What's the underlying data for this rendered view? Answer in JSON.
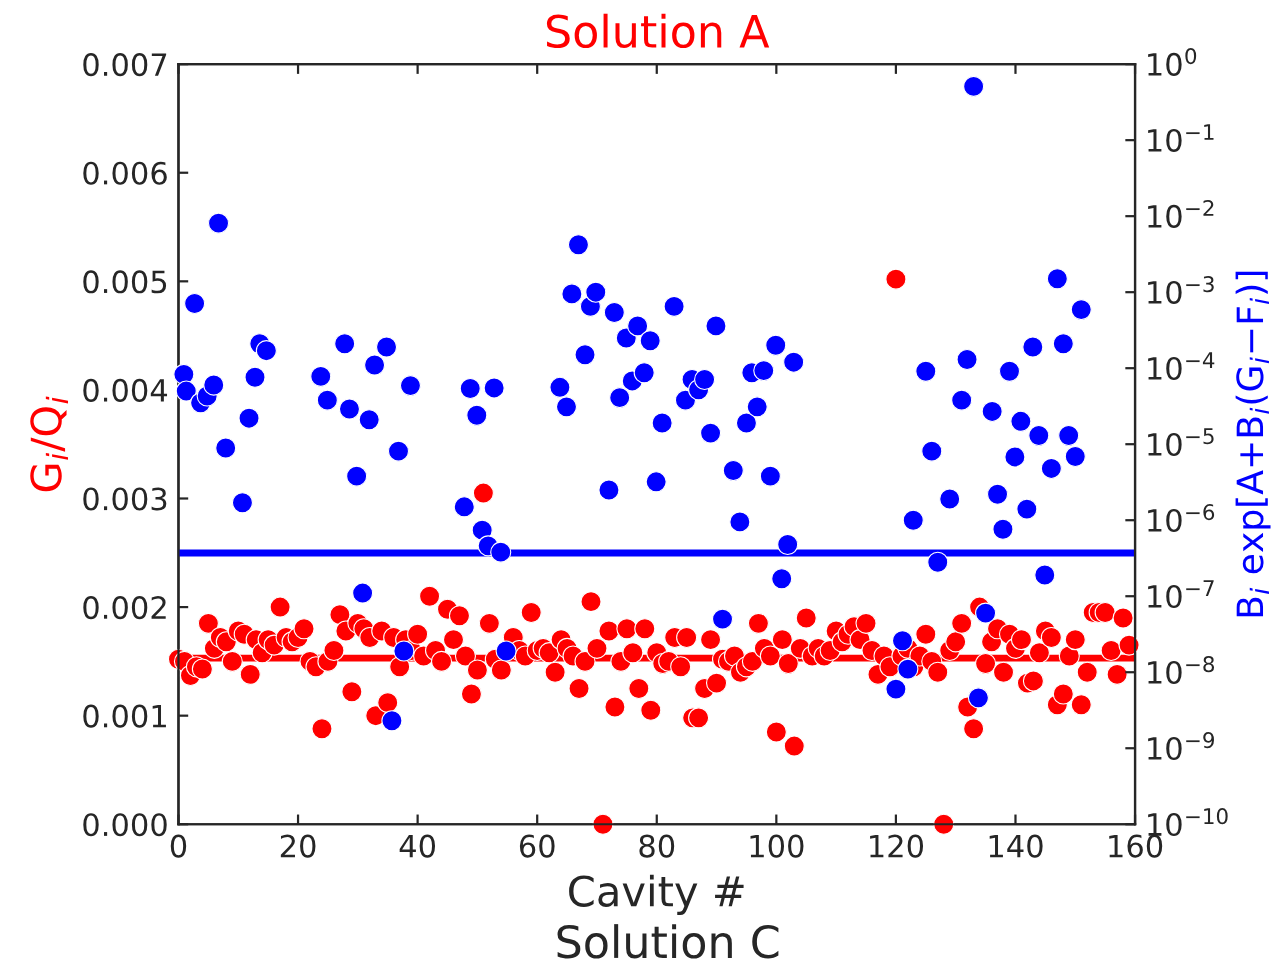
{
  "chart_data": {
    "type": "scatter",
    "title": "Solution A",
    "xlabel": "Cavity #",
    "ylabel": "G$_{i}$/Q$_{i}$",
    "y2label": "B$_{i}$ exp[A+B$_{i}$(G$_{i}$−F$_{i}$)]",
    "marker": "circle",
    "grid": false,
    "legend": false,
    "log": "y2",
    "xlim": [
      0,
      160
    ],
    "xticks": [
      0,
      20,
      40,
      60,
      80,
      100,
      120,
      140,
      160
    ],
    "ylim": [
      0,
      0.007
    ],
    "yticks": [
      {
        "value": 0,
        "label": "0.000"
      },
      {
        "value": 0.001,
        "label": "0.001"
      },
      {
        "value": 0.002,
        "label": "0.002"
      },
      {
        "value": 0.003,
        "label": "0.003"
      },
      {
        "value": 0.004,
        "label": "0.004"
      },
      {
        "value": 0.005,
        "label": "0.005"
      },
      {
        "value": 0.006,
        "label": "0.006"
      },
      {
        "value": 0.007,
        "label": "0.007"
      }
    ],
    "y2lim": [
      1e-10,
      1
    ],
    "y2ticks": [
      {
        "value": 1e-10,
        "label": "10$^{−10}$"
      },
      {
        "value": 1e-09,
        "label": "10$^{−9}$"
      },
      {
        "value": 1e-08,
        "label": "10$^{−8}$"
      },
      {
        "value": 1e-07,
        "label": "10$^{−7}$"
      },
      {
        "value": 1e-06,
        "label": "10$^{−6}$"
      },
      {
        "value": 1e-05,
        "label": "10$^{−5}$"
      },
      {
        "value": 0.0001,
        "label": "10$^{−4}$"
      },
      {
        "value": 0.001,
        "label": "10$^{−3}$"
      },
      {
        "value": 0.01,
        "label": "10$^{−2}$"
      },
      {
        "value": 0.1,
        "label": "10$^{−1}$"
      },
      {
        "value": 1,
        "label": "10$^{0}$"
      }
    ],
    "series": [
      {
        "color": "#ff0000",
        "x": [
          0,
          1,
          2,
          3,
          4,
          5,
          6,
          7,
          8,
          9,
          10,
          11,
          12,
          13,
          14,
          15,
          16,
          17,
          18,
          19,
          20,
          21,
          22,
          23,
          24,
          25,
          26,
          27,
          28,
          29,
          30,
          31,
          32,
          33,
          34,
          35,
          36,
          37,
          38,
          39,
          40,
          41,
          42,
          43,
          44,
          45,
          46,
          47,
          48,
          49,
          50,
          51,
          52,
          53,
          54,
          55,
          56,
          57,
          58,
          59,
          60,
          61,
          62,
          63,
          64,
          65,
          66,
          67,
          68,
          69,
          70,
          71,
          72,
          73,
          74,
          75,
          76,
          77,
          78,
          79,
          80,
          81,
          82,
          83,
          84,
          85,
          86,
          87,
          88,
          89,
          90,
          91,
          92,
          93,
          94,
          95,
          96,
          97,
          98,
          99,
          100,
          101,
          102,
          103,
          104,
          105,
          106,
          107,
          108,
          109,
          110,
          111,
          112,
          113,
          114,
          115,
          116,
          117,
          118,
          119,
          120,
          121,
          122,
          123,
          124,
          125,
          126,
          127,
          128,
          129,
          130,
          131,
          132,
          133,
          134,
          135,
          136,
          137,
          138,
          139,
          140,
          141,
          142,
          143,
          144,
          145,
          146,
          147,
          148,
          149,
          150,
          151,
          152,
          153,
          154,
          155,
          156,
          157,
          158,
          159
        ],
        "values": [
          0.00152,
          0.0015,
          0.00137,
          0.00145,
          0.00143,
          0.00185,
          0.00162,
          0.00172,
          0.00168,
          0.0015,
          0.00178,
          0.00175,
          0.00138,
          0.0017,
          0.00158,
          0.0017,
          0.00165,
          0.002,
          0.00172,
          0.00168,
          0.00172,
          0.0018,
          0.0015,
          0.00145,
          0.00088,
          0.0015,
          0.0016,
          0.00193,
          0.00178,
          0.00122,
          0.00185,
          0.0018,
          0.00172,
          0.001,
          0.00178,
          0.00112,
          0.00172,
          0.00145,
          0.0017,
          0.0016,
          0.00175,
          0.00155,
          0.0021,
          0.0016,
          0.0015,
          0.00198,
          0.0017,
          0.00192,
          0.00155,
          0.0012,
          0.00142,
          0.00305,
          0.00185,
          0.00152,
          0.00142,
          null,
          0.00172,
          0.0016,
          0.00155,
          0.00195,
          0.0016,
          0.00162,
          0.00158,
          0.0014,
          0.0017,
          0.00162,
          0.00155,
          0.00125,
          0.0015,
          0.00205,
          0.00162,
          0.0,
          0.00178,
          0.00108,
          0.0015,
          0.0018,
          0.00158,
          0.00125,
          0.0018,
          0.00105,
          0.00158,
          0.00148,
          0.0015,
          0.00172,
          0.00145,
          0.00172,
          0.00098,
          0.00098,
          0.00125,
          0.0017,
          0.0013,
          0.00152,
          0.0015,
          0.00155,
          0.0014,
          0.00145,
          0.0015,
          0.00185,
          0.00162,
          0.00155,
          0.00085,
          0.0017,
          0.00148,
          0.00072,
          0.00162,
          0.0019,
          0.00155,
          0.00162,
          0.00155,
          0.0016,
          0.00178,
          0.00168,
          0.00175,
          0.00182,
          0.0017,
          0.00185,
          0.0016,
          0.00138,
          0.00155,
          0.00145,
          0.00502,
          0.00155,
          0.00162,
          0.00145,
          0.00155,
          0.00175,
          0.0015,
          0.0014,
          0.0,
          0.0016,
          0.00168,
          0.00185,
          0.00108,
          0.00088,
          0.002,
          0.00148,
          0.00168,
          0.0018,
          0.0014,
          0.00175,
          0.00162,
          0.0017,
          0.0013,
          0.00132,
          0.00158,
          0.00178,
          0.00172,
          0.0011,
          0.0012,
          0.00155,
          0.0017,
          0.0011,
          0.0014,
          0.00195,
          0.00195,
          0.00195,
          0.0016,
          0.00138,
          0.0019,
          0.00165
        ]
      },
      {
        "color": "#0000ff",
        "axis": "y2",
        "x": [
          0.9,
          1.3,
          2.7,
          3.7,
          4.8,
          5.9,
          6.7,
          7.9,
          10.7,
          11.8,
          12.8,
          13.6,
          14.7,
          23.8,
          24.9,
          27.8,
          28.6,
          29.8,
          30.8,
          31.9,
          32.8,
          34.8,
          35.7,
          36.8,
          37.7,
          38.8,
          47.8,
          48.8,
          49.9,
          50.8,
          51.8,
          52.8,
          53.9,
          54.8,
          63.8,
          64.9,
          65.8,
          66.9,
          68.0,
          68.9,
          69.8,
          72.0,
          72.9,
          73.8,
          74.9,
          75.9,
          76.8,
          77.9,
          78.9,
          79.9,
          80.9,
          82.9,
          84.8,
          85.9,
          87.0,
          88.0,
          89.0,
          89.9,
          91.0,
          92.8,
          93.9,
          95.0,
          95.9,
          96.8,
          97.9,
          99.0,
          99.9,
          100.9,
          101.9,
          102.9,
          120.0,
          121.1,
          122.0,
          122.9,
          125.0,
          126.0,
          127.0,
          129.0,
          131.0,
          131.9,
          133.0,
          133.8,
          135.0,
          136.1,
          137.0,
          137.9,
          139.0,
          139.9,
          140.9,
          141.9,
          142.9,
          143.9,
          144.9,
          146.0,
          147.0,
          148.0,
          148.9,
          150.0,
          151.0
        ],
        "values": [
          8.3e-05,
          5e-05,
          0.00071,
          3.5e-05,
          4.3e-05,
          6e-05,
          0.0081,
          8.9e-06,
          1.7e-06,
          2.2e-05,
          7.6e-05,
          0.00021,
          0.00017,
          7.8e-05,
          3.8e-05,
          0.00021,
          2.9e-05,
          3.8e-06,
          1.1e-07,
          2.1e-05,
          0.00011,
          0.00019,
          2.3e-09,
          8.1e-06,
          1.9e-08,
          5.9e-05,
          1.5e-06,
          5.4e-05,
          2.4e-05,
          7.4e-07,
          4.6e-07,
          5.5e-05,
          3.8e-07,
          1.9e-08,
          5.6e-05,
          3.1e-05,
          0.00095,
          0.0042,
          0.00015,
          0.00065,
          0.001,
          2.5e-06,
          0.00054,
          4.1e-05,
          0.00025,
          6.8e-05,
          0.00036,
          8.7e-05,
          0.00023,
          3.2e-06,
          1.9e-05,
          0.00065,
          3.8e-05,
          7.1e-05,
          5.2e-05,
          7.1e-05,
          1.4e-05,
          0.00036,
          5e-08,
          4.5e-06,
          9.5e-07,
          1.9e-05,
          8.7e-05,
          3.1e-05,
          9.3e-05,
          3.8e-06,
          0.0002,
          1.7e-07,
          4.8e-07,
          0.00012,
          6e-09,
          2.6e-08,
          1.1e-08,
          1e-06,
          9.1e-05,
          8.1e-06,
          2.8e-07,
          1.9e-06,
          3.8e-05,
          0.00013,
          0.51,
          4.6e-09,
          6e-08,
          2.7e-05,
          2.2e-06,
          7.6e-07,
          9.1e-05,
          6.8e-06,
          2e-05,
          1.4e-06,
          0.00019,
          1.3e-05,
          1.9e-07,
          4.8e-06,
          0.0015,
          0.00021,
          1.3e-05,
          6.9e-06,
          0.00059
        ]
      }
    ],
    "ref_lines": [
      {
        "axis": "y",
        "value": 0.00153,
        "color": "#ff0000"
      },
      {
        "axis": "y2",
        "value": 3.7e-07,
        "color": "#0000ff"
      }
    ],
    "annotations": [
      "Solution C"
    ]
  }
}
